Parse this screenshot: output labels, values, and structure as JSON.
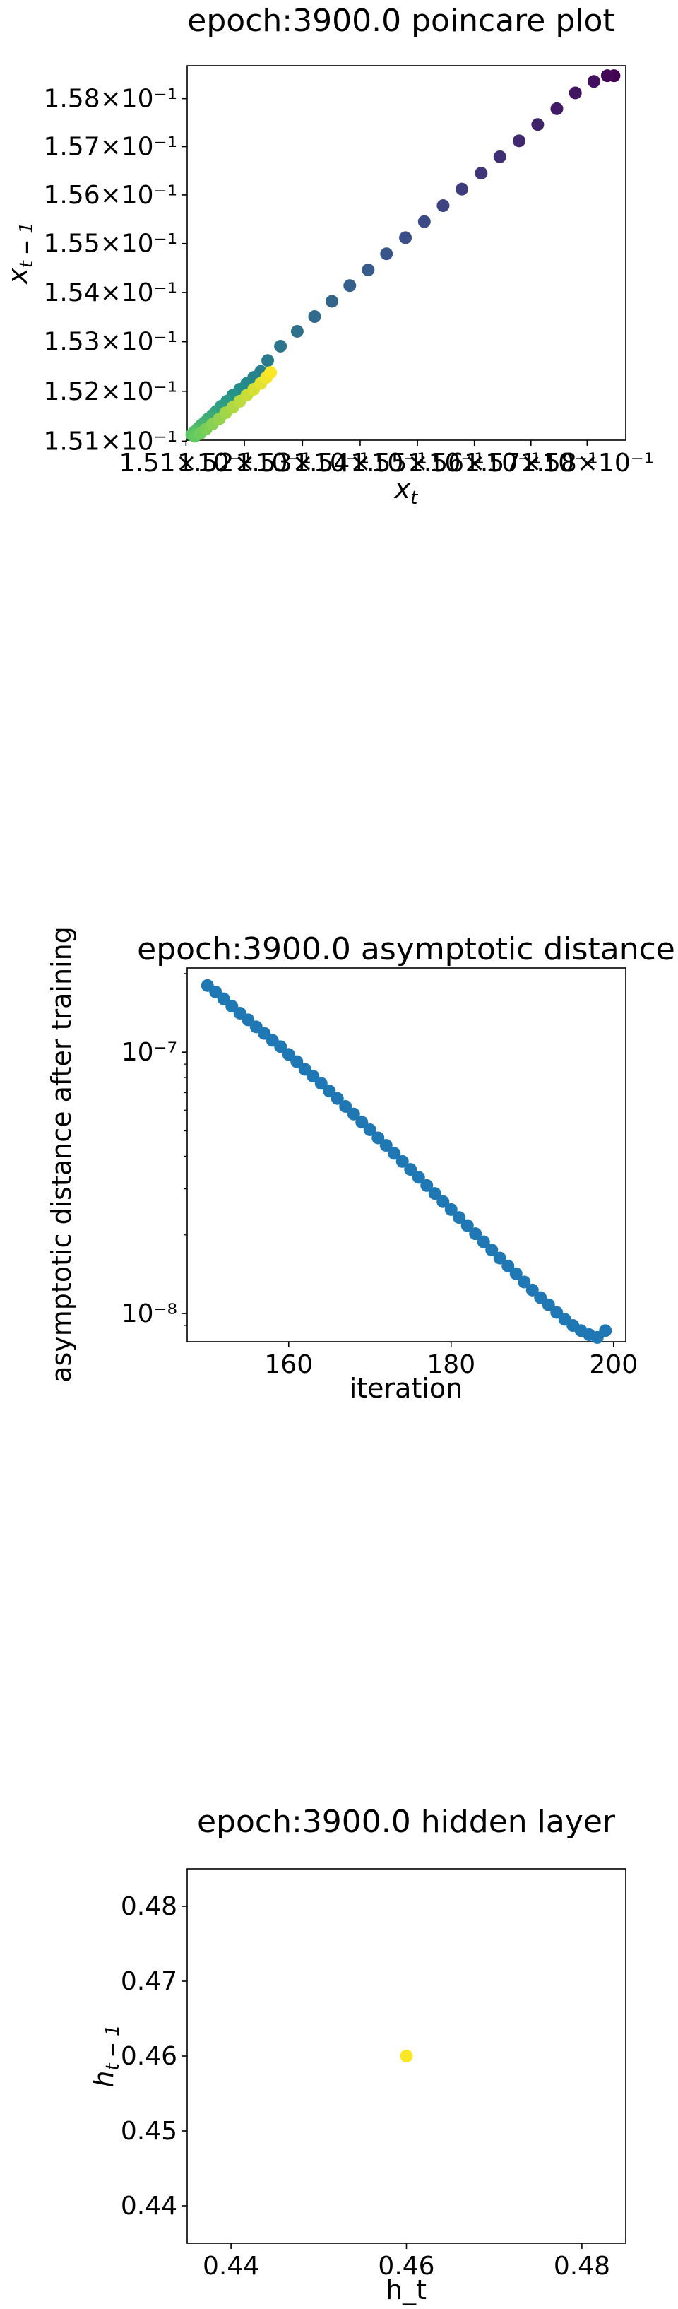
{
  "chart_data": [
    {
      "type": "scatter",
      "title": "epoch:3900.0 poincare plot",
      "xlabel": "x_t",
      "ylabel": "x_{t-1}",
      "xscale": "log",
      "yscale": "log",
      "xlim": [
        0.15102,
        0.15869
      ],
      "ylim": [
        0.15102,
        0.15869
      ],
      "grid": false,
      "colormap": "viridis",
      "x_tick_values": [
        0.151,
        0.152,
        0.153,
        0.154,
        0.155,
        0.156,
        0.157,
        0.158
      ],
      "x_tick_labels": [
        "1.51×10⁻¹",
        "1.52×10⁻¹",
        "1.53×10⁻¹",
        "1.54×10⁻¹",
        "1.55×10⁻¹",
        "1.56×10⁻¹",
        "1.57×10⁻¹",
        "1.58×10⁻¹"
      ],
      "y_tick_values": [
        0.151,
        0.152,
        0.153,
        0.154,
        0.155,
        0.156,
        0.157,
        0.158
      ],
      "y_tick_labels": [
        "1.51×10⁻¹",
        "1.52×10⁻¹",
        "1.53×10⁻¹",
        "1.54×10⁻¹",
        "1.55×10⁻¹",
        "1.56×10⁻¹",
        "1.57×10⁻¹",
        "1.58×10⁻¹"
      ],
      "points_x": [
        0.15848,
        0.15836,
        0.15812,
        0.15779,
        0.15746,
        0.15712,
        0.15679,
        0.15645,
        0.15612,
        0.15578,
        0.15545,
        0.15512,
        0.15479,
        0.15446,
        0.15414,
        0.15382,
        0.15351,
        0.15321,
        0.15291,
        0.15262,
        0.1524,
        0.15228,
        0.15216,
        0.15204,
        0.15192,
        0.1518,
        0.1517,
        0.1516,
        0.15152,
        0.15145,
        0.15138,
        0.15132,
        0.15126,
        0.15121,
        0.15117,
        0.15113,
        0.1511,
        0.15115,
        0.15124,
        0.15134,
        0.15145,
        0.15157,
        0.15168,
        0.1518,
        0.15192,
        0.15204,
        0.15216,
        0.15228,
        0.15238,
        0.15245
      ],
      "points_y": [
        0.15848,
        0.15848,
        0.15836,
        0.15812,
        0.15779,
        0.15746,
        0.15712,
        0.15679,
        0.15645,
        0.15612,
        0.15578,
        0.15545,
        0.15512,
        0.15479,
        0.15446,
        0.15414,
        0.15382,
        0.15351,
        0.15321,
        0.15291,
        0.15262,
        0.1524,
        0.15228,
        0.15216,
        0.15204,
        0.15192,
        0.1518,
        0.1517,
        0.1516,
        0.15152,
        0.15145,
        0.15138,
        0.15132,
        0.15126,
        0.15121,
        0.15117,
        0.15113,
        0.1511,
        0.15115,
        0.15124,
        0.15134,
        0.15145,
        0.15157,
        0.15168,
        0.1518,
        0.15192,
        0.15204,
        0.15216,
        0.15228,
        0.15238
      ]
    },
    {
      "type": "scatter",
      "title": "epoch:3900.0 asymptotic distance",
      "xlabel": "iteration",
      "ylabel": "asymptotic distance after training",
      "xscale": "linear",
      "yscale": "log",
      "xlim": [
        147.5,
        201.5
      ],
      "ylim": [
        7.8e-09,
        2.1e-07
      ],
      "grid": false,
      "marker_color": "#1f77b4",
      "x_tick_values": [
        160,
        180,
        200
      ],
      "x_tick_labels": [
        "160",
        "180",
        "200"
      ],
      "y_tick_values": [
        1e-08,
        1e-07
      ],
      "y_tick_labels": [
        "10⁻⁸",
        "10⁻⁷"
      ],
      "x": [
        150,
        151,
        152,
        153,
        154,
        155,
        156,
        157,
        158,
        159,
        160,
        161,
        162,
        163,
        164,
        165,
        166,
        167,
        168,
        169,
        170,
        171,
        172,
        173,
        174,
        175,
        176,
        177,
        178,
        179,
        180,
        181,
        182,
        183,
        184,
        185,
        186,
        187,
        188,
        189,
        190,
        191,
        192,
        193,
        194,
        195,
        196,
        197,
        198,
        199
      ],
      "y": [
        1.8e-07,
        1.7e-07,
        1.6e-07,
        1.5e-07,
        1.41e-07,
        1.33e-07,
        1.25e-07,
        1.18e-07,
        1.11e-07,
        1.05e-07,
        9.8e-08,
        9.2e-08,
        8.6e-08,
        8.1e-08,
        7.6e-08,
        7.1e-08,
        6.65e-08,
        6.2e-08,
        5.8e-08,
        5.4e-08,
        5.05e-08,
        4.7e-08,
        4.4e-08,
        4.1e-08,
        3.82e-08,
        3.56e-08,
        3.32e-08,
        3.09e-08,
        2.88e-08,
        2.68e-08,
        2.5e-08,
        2.33e-08,
        2.17e-08,
        2.02e-08,
        1.88e-08,
        1.75e-08,
        1.63e-08,
        1.52e-08,
        1.42e-08,
        1.32e-08,
        1.23e-08,
        1.15e-08,
        1.08e-08,
        1.01e-08,
        9.5e-09,
        9e-09,
        8.6e-09,
        8.3e-09,
        8.1e-09,
        8.6e-09
      ]
    },
    {
      "type": "scatter",
      "title": "epoch:3900.0 hidden layer",
      "xlabel": "h_t",
      "ylabel": "h_{t-1}",
      "xscale": "linear",
      "yscale": "linear",
      "xlim": [
        0.435,
        0.485
      ],
      "ylim": [
        0.435,
        0.485
      ],
      "grid": false,
      "marker_color": "#fde725",
      "x_tick_values": [
        0.44,
        0.46,
        0.48
      ],
      "x_tick_labels": [
        "0.44",
        "0.46",
        "0.48"
      ],
      "y_tick_values": [
        0.44,
        0.45,
        0.46,
        0.47,
        0.48
      ],
      "y_tick_labels": [
        "0.44",
        "0.45",
        "0.46",
        "0.47",
        "0.48"
      ],
      "x": [
        0.46
      ],
      "y": [
        0.46
      ]
    }
  ]
}
